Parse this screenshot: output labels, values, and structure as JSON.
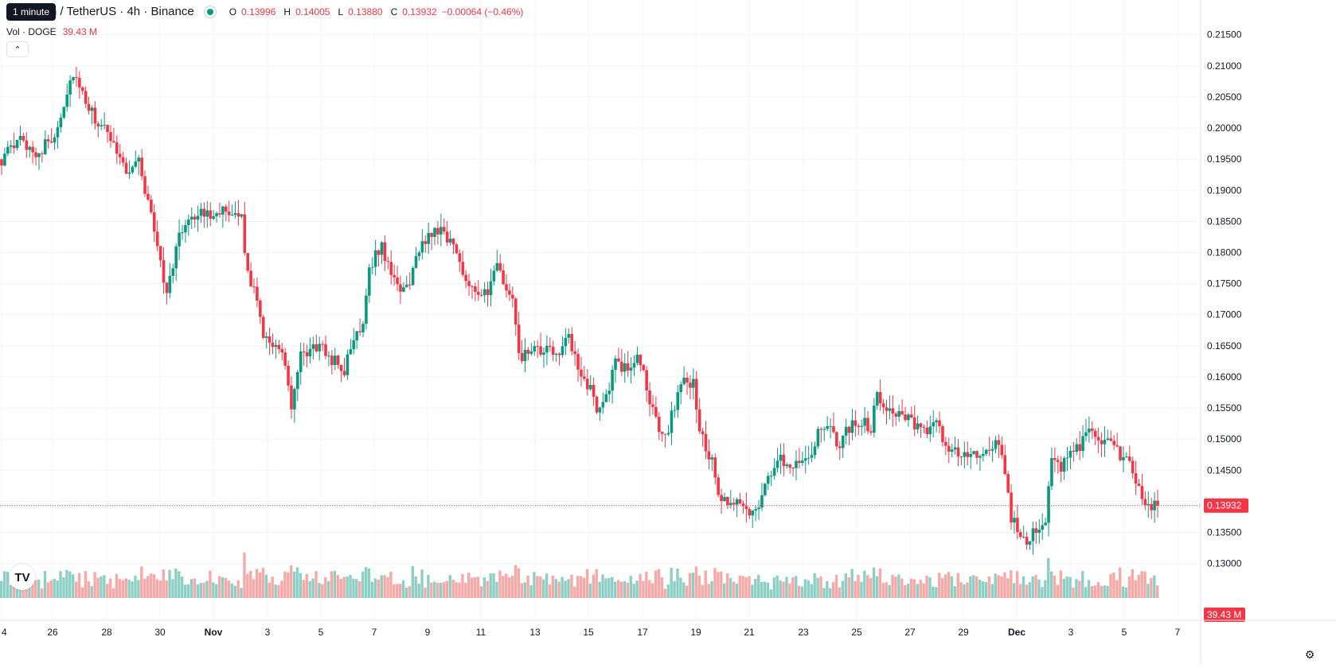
{
  "header": {
    "pair_title": "Dogecoin / TetherUS · 4h · Binance",
    "ohlc": {
      "o_label": "O",
      "o_value": "0.13996",
      "h_label": "H",
      "h_value": "0.14005",
      "l_label": "L",
      "l_value": "0.13880",
      "c_label": "C",
      "c_value": "0.13932",
      "change": "−0.00064 (−0.46%)"
    },
    "volume_label": "Vol · DOGE",
    "volume_value": "39.43 M",
    "tooltip": "1 minute",
    "logo_text": "TV"
  },
  "colors": {
    "up": "#089981",
    "down": "#f23645",
    "up_volume": "#8ecfc5",
    "down_volume": "#f7a9a7",
    "grid": "#f0f3fa",
    "last_price_line": "#f23645"
  },
  "chart_data": {
    "type": "candlestick",
    "symbol": "Dogecoin / TetherUS",
    "interval": "4h",
    "exchange": "Binance",
    "x_ticks": [
      "4",
      "26",
      "28",
      "30",
      "Nov",
      "3",
      "5",
      "7",
      "9",
      "11",
      "13",
      "15",
      "17",
      "19",
      "21",
      "23",
      "25",
      "27",
      "29",
      "Dec",
      "3",
      "5",
      "7"
    ],
    "y_ticks": [
      "0.21500",
      "0.21000",
      "0.20500",
      "0.20000",
      "0.19500",
      "0.19000",
      "0.18500",
      "0.18000",
      "0.17500",
      "0.17000",
      "0.16500",
      "0.16000",
      "0.15500",
      "0.15000",
      "0.14500",
      "0.14000",
      "0.13500",
      "0.13000"
    ],
    "ylim": [
      0.1265,
      0.2165
    ],
    "last_price_label": "0.13932",
    "last_volume_label": "39.43 M",
    "close_path": [
      [
        0,
        0.195
      ],
      [
        6,
        0.198
      ],
      [
        12,
        0.196
      ],
      [
        17,
        0.199
      ],
      [
        20,
        0.204
      ],
      [
        23,
        0.209
      ],
      [
        25,
        0.206
      ],
      [
        28,
        0.203
      ],
      [
        32,
        0.2
      ],
      [
        36,
        0.198
      ],
      [
        40,
        0.193
      ],
      [
        44,
        0.195
      ],
      [
        46,
        0.19
      ],
      [
        48,
        0.186
      ],
      [
        51,
        0.179
      ],
      [
        53,
        0.173
      ],
      [
        56,
        0.181
      ],
      [
        60,
        0.186
      ],
      [
        65,
        0.186
      ],
      [
        70,
        0.187
      ],
      [
        74,
        0.185
      ],
      [
        77,
        0.186
      ],
      [
        79,
        0.176
      ],
      [
        82,
        0.173
      ],
      [
        84,
        0.167
      ],
      [
        88,
        0.165
      ],
      [
        91,
        0.162
      ],
      [
        93,
        0.155
      ],
      [
        96,
        0.163
      ],
      [
        101,
        0.165
      ],
      [
        106,
        0.163
      ],
      [
        110,
        0.161
      ],
      [
        113,
        0.166
      ],
      [
        116,
        0.169
      ],
      [
        118,
        0.178
      ],
      [
        122,
        0.181
      ],
      [
        126,
        0.175
      ],
      [
        130,
        0.174
      ],
      [
        133,
        0.179
      ],
      [
        137,
        0.183
      ],
      [
        141,
        0.184
      ],
      [
        145,
        0.181
      ],
      [
        148,
        0.177
      ],
      [
        152,
        0.174
      ],
      [
        156,
        0.173
      ],
      [
        159,
        0.178
      ],
      [
        162,
        0.174
      ],
      [
        164,
        0.172
      ],
      [
        166,
        0.163
      ],
      [
        170,
        0.164
      ],
      [
        174,
        0.164
      ],
      [
        178,
        0.164
      ],
      [
        182,
        0.166
      ],
      [
        185,
        0.161
      ],
      [
        188,
        0.159
      ],
      [
        191,
        0.155
      ],
      [
        194,
        0.157
      ],
      [
        197,
        0.162
      ],
      [
        201,
        0.161
      ],
      [
        204,
        0.164
      ],
      [
        207,
        0.158
      ],
      [
        209,
        0.155
      ],
      [
        212,
        0.15
      ],
      [
        214,
        0.152
      ],
      [
        218,
        0.159
      ],
      [
        222,
        0.159
      ],
      [
        224,
        0.152
      ],
      [
        226,
        0.148
      ],
      [
        228,
        0.146
      ],
      [
        230,
        0.141
      ],
      [
        233,
        0.139
      ],
      [
        237,
        0.14
      ],
      [
        241,
        0.138
      ],
      [
        245,
        0.142
      ],
      [
        249,
        0.147
      ],
      [
        253,
        0.146
      ],
      [
        257,
        0.147
      ],
      [
        260,
        0.148
      ],
      [
        263,
        0.152
      ],
      [
        266,
        0.151
      ],
      [
        269,
        0.149
      ],
      [
        272,
        0.152
      ],
      [
        276,
        0.153
      ],
      [
        279,
        0.152
      ],
      [
        281,
        0.157
      ],
      [
        285,
        0.155
      ],
      [
        289,
        0.154
      ],
      [
        293,
        0.152
      ],
      [
        296,
        0.151
      ],
      [
        299,
        0.153
      ],
      [
        303,
        0.149
      ],
      [
        307,
        0.148
      ],
      [
        312,
        0.147
      ],
      [
        316,
        0.148
      ],
      [
        320,
        0.149
      ],
      [
        322,
        0.145
      ],
      [
        324,
        0.137
      ],
      [
        327,
        0.135
      ],
      [
        329,
        0.134
      ],
      [
        332,
        0.136
      ],
      [
        335,
        0.137
      ],
      [
        337,
        0.146
      ],
      [
        340,
        0.145
      ],
      [
        343,
        0.149
      ],
      [
        346,
        0.149
      ],
      [
        349,
        0.151
      ],
      [
        352,
        0.15
      ],
      [
        356,
        0.149
      ],
      [
        360,
        0.147
      ],
      [
        363,
        0.145
      ],
      [
        366,
        0.14
      ],
      [
        369,
        0.139
      ],
      [
        371,
        0.13932
      ]
    ],
    "candle_count": 372,
    "volume_scale_max_m": 180
  }
}
